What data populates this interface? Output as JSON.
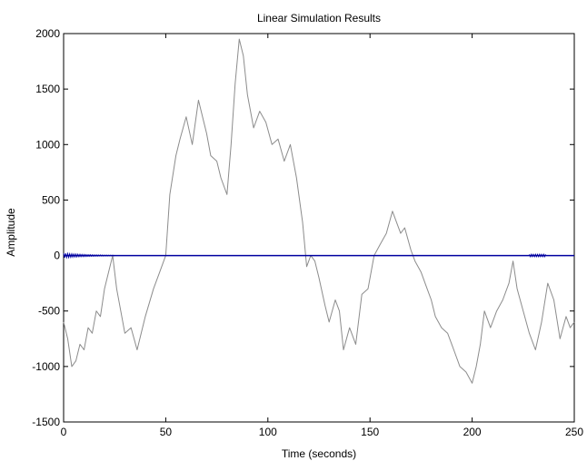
{
  "chart_data": {
    "type": "line",
    "title": "Linear Simulation Results",
    "xlabel": "Time (seconds)",
    "ylabel": "Amplitude",
    "xlim": [
      0,
      250
    ],
    "ylim": [
      -1500,
      2000
    ],
    "x_ticks": [
      0,
      50,
      100,
      150,
      200,
      250
    ],
    "y_ticks": [
      -1500,
      -1000,
      -500,
      0,
      500,
      1000,
      1500,
      2000
    ],
    "grid": false,
    "legend": "none",
    "series": [
      {
        "color": "#8c8c8c",
        "description_role": "input",
        "x": [
          0,
          2,
          4,
          6,
          8,
          10,
          12,
          14,
          16,
          18,
          20,
          22,
          24,
          26,
          28,
          30,
          33,
          36,
          40,
          44,
          47,
          50,
          52,
          55,
          57,
          60,
          63,
          66,
          68,
          70,
          72,
          75,
          77,
          80,
          82,
          84,
          86,
          88,
          90,
          93,
          96,
          99,
          102,
          105,
          108,
          111,
          114,
          117,
          119,
          121,
          123,
          125,
          128,
          130,
          133,
          135,
          137,
          140,
          143,
          146,
          149,
          152,
          155,
          158,
          161,
          163,
          165,
          167,
          170,
          172,
          175,
          178,
          180,
          182,
          185,
          188,
          191,
          194,
          197,
          200,
          202,
          204,
          206,
          209,
          212,
          215,
          218,
          220,
          222,
          225,
          228,
          231,
          234,
          237,
          240,
          243,
          246,
          248,
          250
        ],
        "y": [
          -600,
          -750,
          -1000,
          -950,
          -800,
          -850,
          -650,
          -700,
          -500,
          -550,
          -300,
          -150,
          0,
          -300,
          -500,
          -700,
          -650,
          -850,
          -550,
          -300,
          -150,
          0,
          550,
          900,
          1050,
          1250,
          1000,
          1400,
          1250,
          1100,
          900,
          850,
          700,
          550,
          1000,
          1550,
          1950,
          1800,
          1450,
          1150,
          1300,
          1200,
          1000,
          1050,
          850,
          1000,
          700,
          300,
          -100,
          0,
          -50,
          -200,
          -450,
          -600,
          -400,
          -500,
          -850,
          -650,
          -800,
          -350,
          -300,
          0,
          100,
          200,
          400,
          300,
          200,
          250,
          50,
          -50,
          -150,
          -300,
          -400,
          -550,
          -650,
          -700,
          -850,
          -1000,
          -1050,
          -1150,
          -1000,
          -800,
          -500,
          -650,
          -500,
          -400,
          -250,
          -50,
          -300,
          -500,
          -700,
          -850,
          -600,
          -250,
          -400,
          -750,
          -550,
          -650,
          -600
        ]
      },
      {
        "color": "#0000a0",
        "description_role": "output",
        "x": [
          0,
          5,
          10,
          15,
          20,
          25,
          30,
          50,
          75,
          100,
          125,
          150,
          175,
          200,
          225,
          230,
          235,
          250
        ],
        "y": [
          0,
          0,
          0,
          0,
          0,
          0,
          0,
          0,
          0,
          0,
          0,
          0,
          0,
          0,
          0,
          0,
          0,
          0
        ]
      }
    ]
  }
}
